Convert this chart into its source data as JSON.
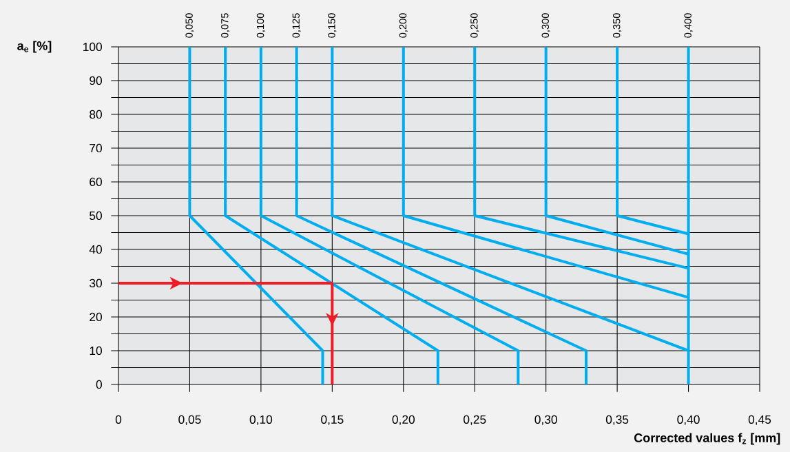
{
  "chart_data": {
    "type": "line",
    "xlabel": "Corrected values f$_{z}$ [mm]",
    "ylabel": "a$_{e}$ [%]",
    "color": "#00aeef",
    "grid": true,
    "xlim": [
      0,
      0.45
    ],
    "ylim": [
      0,
      100
    ],
    "xticks": [
      0,
      {
        "value": 0.05,
        "label": "0,05"
      },
      {
        "value": 0.1,
        "label": "0,10"
      },
      {
        "value": 0.15,
        "label": "0,15"
      },
      {
        "value": 0.2,
        "label": "0,20"
      },
      {
        "value": 0.25,
        "label": "0,25"
      },
      {
        "value": 0.3,
        "label": "0,30"
      },
      {
        "value": 0.35,
        "label": "0,35"
      },
      {
        "value": 0.4,
        "label": "0,40"
      },
      {
        "value": 0.45,
        "label": "0,45"
      }
    ],
    "yticks": [
      0,
      {
        "value": 5,
        "label": null
      },
      10,
      {
        "value": 15,
        "label": null
      },
      20,
      {
        "value": 25,
        "label": null
      },
      30,
      {
        "value": 35,
        "label": null
      },
      40,
      {
        "value": 45,
        "label": null
      },
      50,
      {
        "value": 55,
        "label": null
      },
      60,
      {
        "value": 65,
        "label": null
      },
      70,
      {
        "value": 75,
        "label": null
      },
      80,
      {
        "value": 85,
        "label": null
      },
      90,
      {
        "value": 95,
        "label": null
      },
      100
    ],
    "x2lim": [
      0,
      0.45
    ],
    "x2ticks": [
      {
        "value": 0.05,
        "label": "0,050"
      },
      {
        "value": 0.075,
        "label": "0,075"
      },
      {
        "value": 0.1,
        "label": "0,100"
      },
      {
        "value": 0.125,
        "label": "0,125"
      },
      {
        "value": 0.15,
        "label": "0,150"
      },
      {
        "value": 0.2,
        "label": "0,200"
      },
      {
        "value": 0.25,
        "label": "0,250"
      },
      {
        "value": 0.3,
        "label": "0,300"
      },
      {
        "value": 0.35,
        "label": "0,350"
      },
      {
        "value": 0.4,
        "label": "0,400"
      }
    ],
    "series": [
      {
        "x": [
          0.05,
          0.05,
          0.1433,
          0.1433
        ],
        "values": [
          100,
          50,
          10,
          0
        ]
      },
      {
        "x": [
          0.075,
          0.075,
          0.2242,
          0.2242
        ],
        "values": [
          100,
          50,
          10,
          0
        ]
      },
      {
        "x": [
          0.1,
          0.1,
          0.2805,
          0.2805
        ],
        "values": [
          100,
          50,
          10,
          0
        ]
      },
      {
        "x": [
          0.125,
          0.125,
          0.3282,
          0.3282
        ],
        "values": [
          100,
          50,
          10,
          0
        ]
      },
      {
        "x": [
          0.15,
          0.15,
          0.4
        ],
        "values": [
          100,
          50,
          10
        ]
      },
      {
        "x": [
          0.2,
          0.2,
          0.4
        ],
        "values": [
          100,
          50,
          25.8
        ]
      },
      {
        "x": [
          0.25,
          0.25,
          0.4
        ],
        "values": [
          100,
          50,
          34.4
        ]
      },
      {
        "x": [
          0.3,
          0.3,
          0.4
        ],
        "values": [
          100,
          50,
          38.6
        ]
      },
      {
        "x": [
          0.35,
          0.35,
          0.4
        ],
        "values": [
          100,
          50,
          44.6
        ]
      },
      {
        "x": [
          0.4,
          0.4
        ],
        "values": [
          100,
          0
        ]
      },
      {
        "x": [
          0,
          0.15,
          0.15
        ],
        "values": [
          30,
          30,
          0
        ],
        "color": "#ee1c25"
      }
    ]
  }
}
